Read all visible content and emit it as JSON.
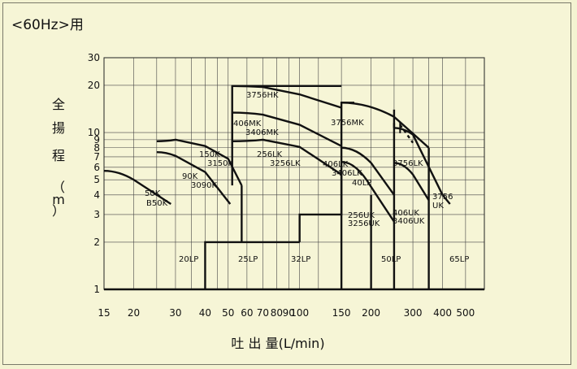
{
  "title": "<60Hz>用",
  "chart_data": {
    "type": "line",
    "title": "<60Hz>用",
    "xlabel": "吐 出 量(L/min)",
    "ylabel_chars": [
      "全",
      "揚",
      "程",
      "（",
      "m",
      "）"
    ],
    "x_scale": "log",
    "y_scale": "log",
    "xlim": [
      15,
      600
    ],
    "ylim": [
      1,
      30
    ],
    "x_ticks": [
      15,
      20,
      30,
      40,
      50,
      60,
      70,
      80,
      90,
      100,
      150,
      200,
      300,
      400,
      500
    ],
    "y_ticks": [
      1,
      2,
      3,
      4,
      5,
      6,
      7,
      8,
      9,
      10,
      20,
      30
    ],
    "grid": true,
    "series": [
      {
        "name": "50K B50K",
        "x": [
          15,
          20,
          28.7
        ],
        "y": [
          5.7,
          5.0,
          3.5
        ]
      },
      {
        "name": "90K 3090K",
        "x": [
          25,
          30,
          40,
          51
        ],
        "y": [
          7.5,
          7.1,
          5.6,
          3.5
        ]
      },
      {
        "name": "150K 3150K",
        "x": [
          25,
          30,
          40,
          50,
          57
        ],
        "y": [
          8.8,
          9.0,
          8.2,
          6.8,
          4.6
        ]
      },
      {
        "name": "256LK 3256LK",
        "x": [
          52,
          70,
          100,
          150
        ],
        "y": [
          8.8,
          9.0,
          8.1,
          5.4
        ]
      },
      {
        "name": "406MK 3406MK",
        "x": [
          52,
          70,
          100,
          150
        ],
        "y": [
          13.4,
          13.0,
          11.2,
          8.2
        ]
      },
      {
        "name": "3756HK",
        "x": [
          52,
          70,
          100,
          150
        ],
        "y": [
          19.8,
          19.5,
          17.5,
          14.4
        ]
      },
      {
        "name": "406LK 3406LK",
        "x": [
          150,
          200,
          250
        ],
        "y": [
          8.0,
          6.4,
          4.0
        ]
      },
      {
        "name": "256UK 3256UK",
        "x": [
          150,
          200,
          250
        ],
        "y": [
          6.5,
          4.5,
          2.7
        ]
      },
      {
        "name": "3756MK",
        "x": [
          150,
          250,
          350
        ],
        "y": [
          15.5,
          12.6,
          8.0
        ]
      },
      {
        "name": "3756LK",
        "x": [
          250,
          300,
          400
        ],
        "y": [
          10.7,
          9.7,
          4.0
        ]
      },
      {
        "name": "406UK 3406UK",
        "x": [
          250,
          300,
          350
        ],
        "y": [
          6.4,
          5.4,
          3.7
        ]
      },
      {
        "name": "3756UK",
        "x": [
          400,
          430
        ],
        "y": [
          4.0,
          3.5
        ]
      }
    ],
    "labels": [
      {
        "text": "3756HK"
      },
      {
        "text": "406MK"
      },
      {
        "text": "3406MK"
      },
      {
        "text": "3756MK"
      },
      {
        "text": "150K"
      },
      {
        "text": "3150K"
      },
      {
        "text": "256LK"
      },
      {
        "text": "3256LK"
      },
      {
        "text": "406LK"
      },
      {
        "text": "3406LK"
      },
      {
        "text": "40LP"
      },
      {
        "text": "3756LK"
      },
      {
        "text": "90K"
      },
      {
        "text": "3090K"
      },
      {
        "text": "50K"
      },
      {
        "text": "B50K"
      },
      {
        "text": "3756"
      },
      {
        "text": "UK"
      },
      {
        "text": "256UK"
      },
      {
        "text": "3256UK"
      },
      {
        "text": "406UK"
      },
      {
        "text": "3406UK"
      },
      {
        "text": "20LP"
      },
      {
        "text": "25LP"
      },
      {
        "text": "32LP"
      },
      {
        "text": "50LP"
      },
      {
        "text": "65LP"
      }
    ]
  }
}
